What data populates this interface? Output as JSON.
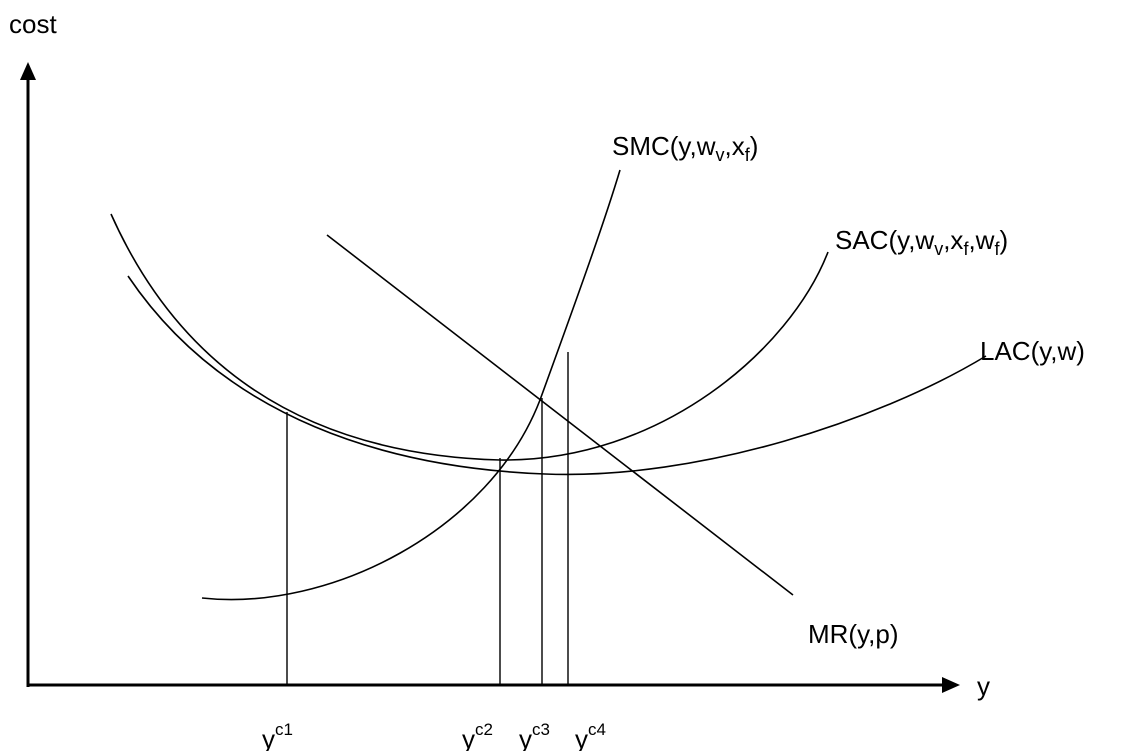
{
  "axes": {
    "y_axis_label": "cost",
    "x_axis_label": "y"
  },
  "curves": {
    "smc": {
      "main": "SMC(y,w",
      "sub1": "v",
      "mid": ",x",
      "sub2": "f",
      "end": ")"
    },
    "sac": {
      "main": "SAC(y,w",
      "sub1": "v",
      "mid1": ",x",
      "sub2": "f",
      "mid2": ",w",
      "sub3": "f",
      "end": ")"
    },
    "lac": {
      "label": "LAC(y,w)"
    },
    "mr": {
      "label": "MR(y,p)"
    }
  },
  "quantities": [
    {
      "base": "y",
      "sup": "c1"
    },
    {
      "base": "y",
      "sup": "c2"
    },
    {
      "base": "y",
      "sup": "c3"
    },
    {
      "base": "y",
      "sup": "c4"
    }
  ],
  "colors": {
    "ink": "#000000",
    "background": "#ffffff"
  }
}
